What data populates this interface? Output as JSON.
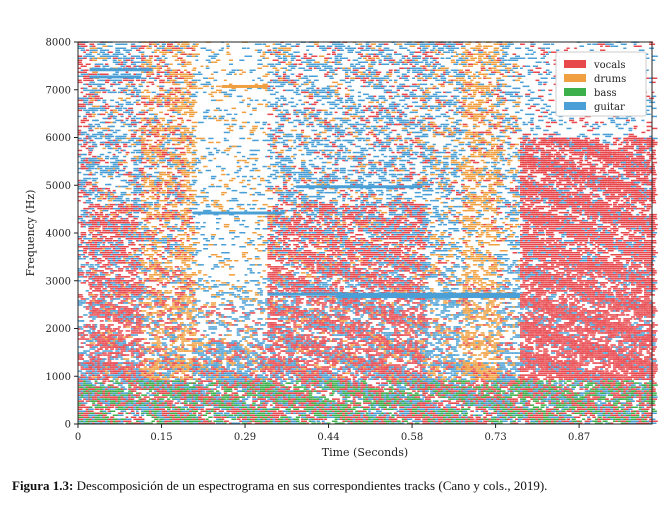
{
  "chart_data": {
    "type": "heatmap",
    "title": "",
    "xlabel": "Time (Seconds)",
    "ylabel": "Frequency (Hz)",
    "xlim": [
      0,
      1.0
    ],
    "ylim": [
      0,
      8000
    ],
    "x_ticks": [
      "0",
      "0.15",
      "0.29",
      "0.44",
      "0.58",
      "0.73",
      "0.87"
    ],
    "y_ticks": [
      "0",
      "1000",
      "2000",
      "3000",
      "4000",
      "5000",
      "6000",
      "7000",
      "8000"
    ],
    "grid": false,
    "legend_position": "top-right",
    "series": [
      {
        "name": "vocals",
        "color": "#e8474c"
      },
      {
        "name": "drums",
        "color": "#f0a040"
      },
      {
        "name": "bass",
        "color": "#3cb04a"
      },
      {
        "name": "guitar",
        "color": "#4aa0d6"
      }
    ]
  },
  "caption": {
    "label": "Figura 1.3:",
    "text": "Descomposición de un espectrograma en sus correspondientes tracks (Cano y cols., 2019)."
  }
}
